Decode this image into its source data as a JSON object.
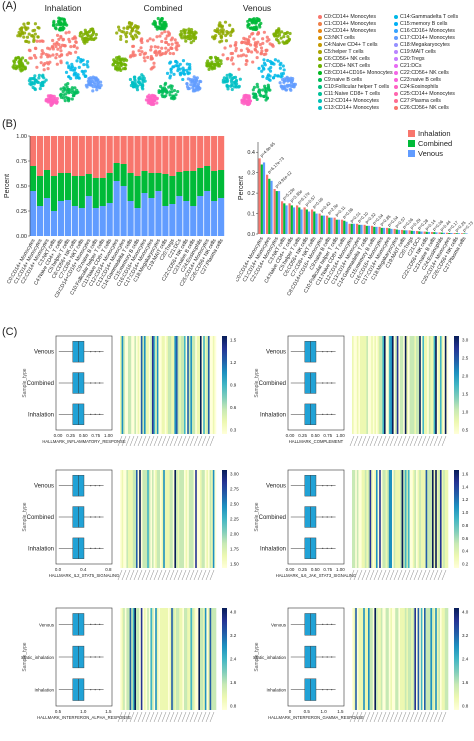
{
  "panels": {
    "a_label": "(A)",
    "b_label": "(B)",
    "c_label": "(C)"
  },
  "umap": {
    "titles": [
      "Inhalation",
      "Combined",
      "Venous"
    ],
    "legend": [
      {
        "label": "C0:CD14+ Monocytes",
        "color": "#f8766d"
      },
      {
        "label": "C1:CD14+ Monocytes",
        "color": "#ef7f49"
      },
      {
        "label": "C2:CD14+ Monocytes",
        "color": "#e68613"
      },
      {
        "label": "C3:NKT cells",
        "color": "#d89000"
      },
      {
        "label": "C4:Naive CD4+ T cells",
        "color": "#c49a00"
      },
      {
        "label": "C5:helper T cells",
        "color": "#aba300"
      },
      {
        "label": "C6:CD56+ NK cells",
        "color": "#8fa900"
      },
      {
        "label": "C7:CD8+ NKT cells",
        "color": "#6bb100"
      },
      {
        "label": "C8:CD14+CD16+ Monocytes",
        "color": "#00b81f"
      },
      {
        "label": "C9:naive B cells",
        "color": "#00bc59"
      },
      {
        "label": "C10:Follicular helper T cells",
        "color": "#00be7d"
      },
      {
        "label": "C11:Naive CD8+ T cells",
        "color": "#00c19a"
      },
      {
        "label": "C12:CD14+ Monocytes",
        "color": "#00c0b5"
      },
      {
        "label": "C13:CD14+ Monocytes",
        "color": "#00bfc4"
      },
      {
        "label": "C14:Gammadelta T cells",
        "color": "#00b8e7"
      },
      {
        "label": "C15:memory B cells",
        "color": "#00b0f6"
      },
      {
        "label": "C16:CD16+ Monocytes",
        "color": "#35a2ff"
      },
      {
        "label": "C17:CD14+ Monocytes",
        "color": "#619cff"
      },
      {
        "label": "C18:Megakaryocytes",
        "color": "#9590ff"
      },
      {
        "label": "C19:MAIT cells",
        "color": "#b983ff"
      },
      {
        "label": "C20:Tregs",
        "color": "#c77cff"
      },
      {
        "label": "C21:DCs",
        "color": "#e76bf3"
      },
      {
        "label": "C22:CD56+ NK cells",
        "color": "#f365e6"
      },
      {
        "label": "C23:naive B cells",
        "color": "#fa62db"
      },
      {
        "label": "C24:Eosinophils",
        "color": "#ff61c3"
      },
      {
        "label": "C25:CD14+ Monocytes",
        "color": "#ff65ae"
      },
      {
        "label": "C27:Plasma cells",
        "color": "#ff6c91"
      },
      {
        "label": "C26:CD56+ NK cells",
        "color": "#f8766d"
      }
    ]
  },
  "chart_data": [
    {
      "type": "bar",
      "stacked": true,
      "ylabel": "Percent",
      "ylim": [
        0,
        1
      ],
      "yticks": [
        0.0,
        0.25,
        0.5,
        0.75,
        1.0
      ],
      "categories": [
        "C0:CD14+ Monocytes",
        "C1:CD14+ Monocytes",
        "C2:CD14+ Monocytes",
        "C3:NKT cells",
        "C4:Naive CD4+ T cells",
        "C5:helper T cells",
        "C6:CD56+ NK cells",
        "C7:CD8+ NKT cells",
        "C8:CD14+CD16+ Monocytes",
        "C9:naive B cells",
        "C10:Follicular helper T cells",
        "C11:Naive CD8+ T cells",
        "C12:CD14+ Monocytes",
        "C13:CD14+ Monocytes",
        "C14:Gammadelta T cells",
        "C15:memory B cells",
        "C16:CD16+ Monocytes",
        "C17:CD14+ Monocytes",
        "C18:Megakaryocytes",
        "C19:MAIT cells",
        "C20:Tregs",
        "C21:DCs",
        "C22:CD56+ NK cells",
        "C23:naive B cells",
        "C24:Eosinophils",
        "C25:CD14+ Monocytes",
        "C26:CD56+ NK cells",
        "C27:Plasma cells"
      ],
      "series": [
        {
          "name": "Venous",
          "color": "#619cff",
          "values": [
            0.45,
            0.3,
            0.38,
            0.25,
            0.35,
            0.36,
            0.3,
            0.28,
            0.4,
            0.28,
            0.3,
            0.33,
            0.55,
            0.5,
            0.35,
            0.28,
            0.43,
            0.38,
            0.45,
            0.3,
            0.32,
            0.4,
            0.35,
            0.3,
            0.4,
            0.45,
            0.35,
            0.38
          ]
        },
        {
          "name": "Combined",
          "color": "#00ba38",
          "values": [
            0.25,
            0.3,
            0.28,
            0.35,
            0.28,
            0.27,
            0.3,
            0.32,
            0.22,
            0.3,
            0.28,
            0.3,
            0.18,
            0.22,
            0.28,
            0.32,
            0.22,
            0.25,
            0.18,
            0.32,
            0.28,
            0.24,
            0.3,
            0.35,
            0.28,
            0.25,
            0.3,
            0.28
          ]
        },
        {
          "name": "Inhalation",
          "color": "#f8766d",
          "values": [
            0.3,
            0.4,
            0.34,
            0.4,
            0.37,
            0.37,
            0.4,
            0.4,
            0.38,
            0.42,
            0.42,
            0.37,
            0.27,
            0.28,
            0.37,
            0.4,
            0.35,
            0.37,
            0.37,
            0.38,
            0.4,
            0.36,
            0.35,
            0.35,
            0.32,
            0.3,
            0.35,
            0.34
          ]
        }
      ]
    },
    {
      "type": "bar",
      "ylabel": "Percent",
      "ylim": [
        0,
        0.45
      ],
      "yticks": [
        0.0,
        0.1,
        0.2,
        0.3,
        0.4
      ],
      "categories": [
        "C0:CD14+ Monocytes",
        "C1:CD14+ Monocytes",
        "C2:CD14+ Monocytes",
        "C3:NKT cells",
        "C4:Naive CD4+ T cells",
        "C5:helper T cells",
        "C6:CD56+ NK cells",
        "C7:CD8+ NKT cells",
        "C8:CD14+CD16+ Monocytes",
        "C9:naive B cells",
        "C10:Follicular helper T cells",
        "C11:Naive CD8+ T cells",
        "C12:CD14+ Monocytes",
        "C13:CD14+ Monocytes",
        "C14:Gammadelta T cells",
        "C15:memory B cells",
        "C16:CD16+ Monocytes",
        "C17:CD14+ Monocytes",
        "C18:Megakaryocytes",
        "C19:MAIT cells",
        "C20:Tregs",
        "C21:DCs",
        "C22:CD56+ NK cells",
        "C23:naive B cells",
        "C24:Eosinophils",
        "C25:CD14+ Monocytes",
        "C26:CD56+ NK cells",
        "C27:Plasma cells"
      ],
      "series": [
        {
          "name": "Inhalation",
          "color": "#f8766d",
          "values": [
            0.37,
            0.29,
            0.22,
            0.16,
            0.15,
            0.14,
            0.13,
            0.12,
            0.1,
            0.09,
            0.08,
            0.07,
            0.05,
            0.05,
            0.045,
            0.04,
            0.035,
            0.03,
            0.025,
            0.02,
            0.018,
            0.015,
            0.012,
            0.01,
            0.008,
            0.006,
            0.005,
            0.004
          ]
        },
        {
          "name": "Combined",
          "color": "#00ba38",
          "values": [
            0.34,
            0.27,
            0.21,
            0.15,
            0.14,
            0.13,
            0.12,
            0.11,
            0.09,
            0.08,
            0.07,
            0.065,
            0.05,
            0.045,
            0.04,
            0.035,
            0.03,
            0.028,
            0.022,
            0.018,
            0.016,
            0.013,
            0.011,
            0.009,
            0.007,
            0.005,
            0.004,
            0.003
          ]
        },
        {
          "name": "Venous",
          "color": "#619cff",
          "values": [
            0.35,
            0.26,
            0.21,
            0.14,
            0.13,
            0.12,
            0.11,
            0.1,
            0.09,
            0.08,
            0.07,
            0.06,
            0.05,
            0.045,
            0.04,
            0.035,
            0.03,
            0.025,
            0.02,
            0.018,
            0.015,
            0.012,
            0.01,
            0.008,
            0.006,
            0.005,
            0.004,
            0.003
          ]
        }
      ],
      "annotations": [
        "p=4.9e-65",
        "p=6.17e-73",
        "p=9.91e-12",
        "p=5.23e",
        "p=3.35e",
        "p=6.17e",
        "p=0.57",
        "p=0.06",
        "p=0.42",
        "p=2.5e",
        "p=0.11",
        "p=0.56",
        "p=0.01",
        "p=0.10",
        "p=0.32",
        "p=0.04",
        "p=0.85",
        "p=0.04",
        "p=0.57",
        "p=0.06",
        "p=0.29",
        "p=0.28",
        "p=0.14",
        "p=0.06",
        "p=0.44",
        "p=0.17",
        "p=0.25",
        "p=0.73"
      ],
      "legend_position": "top-right"
    }
  ],
  "c_panels": [
    {
      "xlabel": "HALLMARK_INFLAMMATORY_RESPONSE",
      "yaxis_title": "Sample_type",
      "groups": [
        "Venous",
        "Combined",
        "Inhalation"
      ],
      "xticks": [
        "0.00",
        "0.25",
        "0.50",
        "0.75",
        "1.00"
      ],
      "cbar_ticks": [
        "1.5",
        "1.2",
        "0.9",
        "0.6",
        "0.3"
      ]
    },
    {
      "xlabel": "HALLMARK_COMPLEMENT",
      "yaxis_title": "Sample_type",
      "groups": [
        "Venous",
        "Combined",
        "Inhalation"
      ],
      "xticks": [
        "0.00",
        "0.25",
        "0.50",
        "0.75",
        "1.00"
      ],
      "cbar_ticks": [
        "3.0",
        "2.5",
        "2.0",
        "1.5",
        "1.0",
        "0.5"
      ]
    },
    {
      "xlabel": "HALLMARK_IL2_STAT5_SIGNALING",
      "yaxis_title": "Sample_type",
      "groups": [
        "Venous",
        "Combined",
        "Inhalation"
      ],
      "xticks": [
        "0.0",
        "0.4",
        "0.8"
      ],
      "cbar_ticks": [
        "3.00",
        "2.75",
        "2.50",
        "2.25",
        "2.00",
        "1.75",
        "1.50"
      ]
    },
    {
      "xlabel": "HALLMARK_IL6_JAK_STAT3_SIGNALING",
      "yaxis_title": "Sample_type",
      "groups": [
        "Venous",
        "Combined",
        "Inhalation"
      ],
      "xticks": [
        "0.00",
        "0.25",
        "0.50",
        "0.75",
        "1.00"
      ],
      "cbar_ticks": [
        "1.6",
        "1.4",
        "1.2",
        "1.0",
        "0.8",
        "0.6",
        "0.4",
        "0.2"
      ]
    },
    {
      "xlabel": "HALLMARK_INTERFERON_ALPHA_RESPONSE",
      "yaxis_title": "Sample_type",
      "groups": [
        "Venous",
        "Static_inhalation",
        "Inhalation"
      ],
      "xticks": [
        "0.5",
        "1.0",
        "1.5"
      ],
      "cbar_ticks": [
        "4.0",
        "3.2",
        "2.4",
        "1.6",
        "0.8"
      ]
    },
    {
      "xlabel": "HALLMARK_INTERFERON_GAMMA_RESPONSE",
      "yaxis_title": "Sample_type",
      "groups": [
        "Venous",
        "Static_inhalation",
        "Inhalation"
      ],
      "xticks": [
        "0",
        "0.5",
        "1.0",
        "1.5"
      ],
      "cbar_ticks": [
        "4.0",
        "3.2",
        "2.4",
        "1.6",
        "0.8"
      ]
    }
  ]
}
